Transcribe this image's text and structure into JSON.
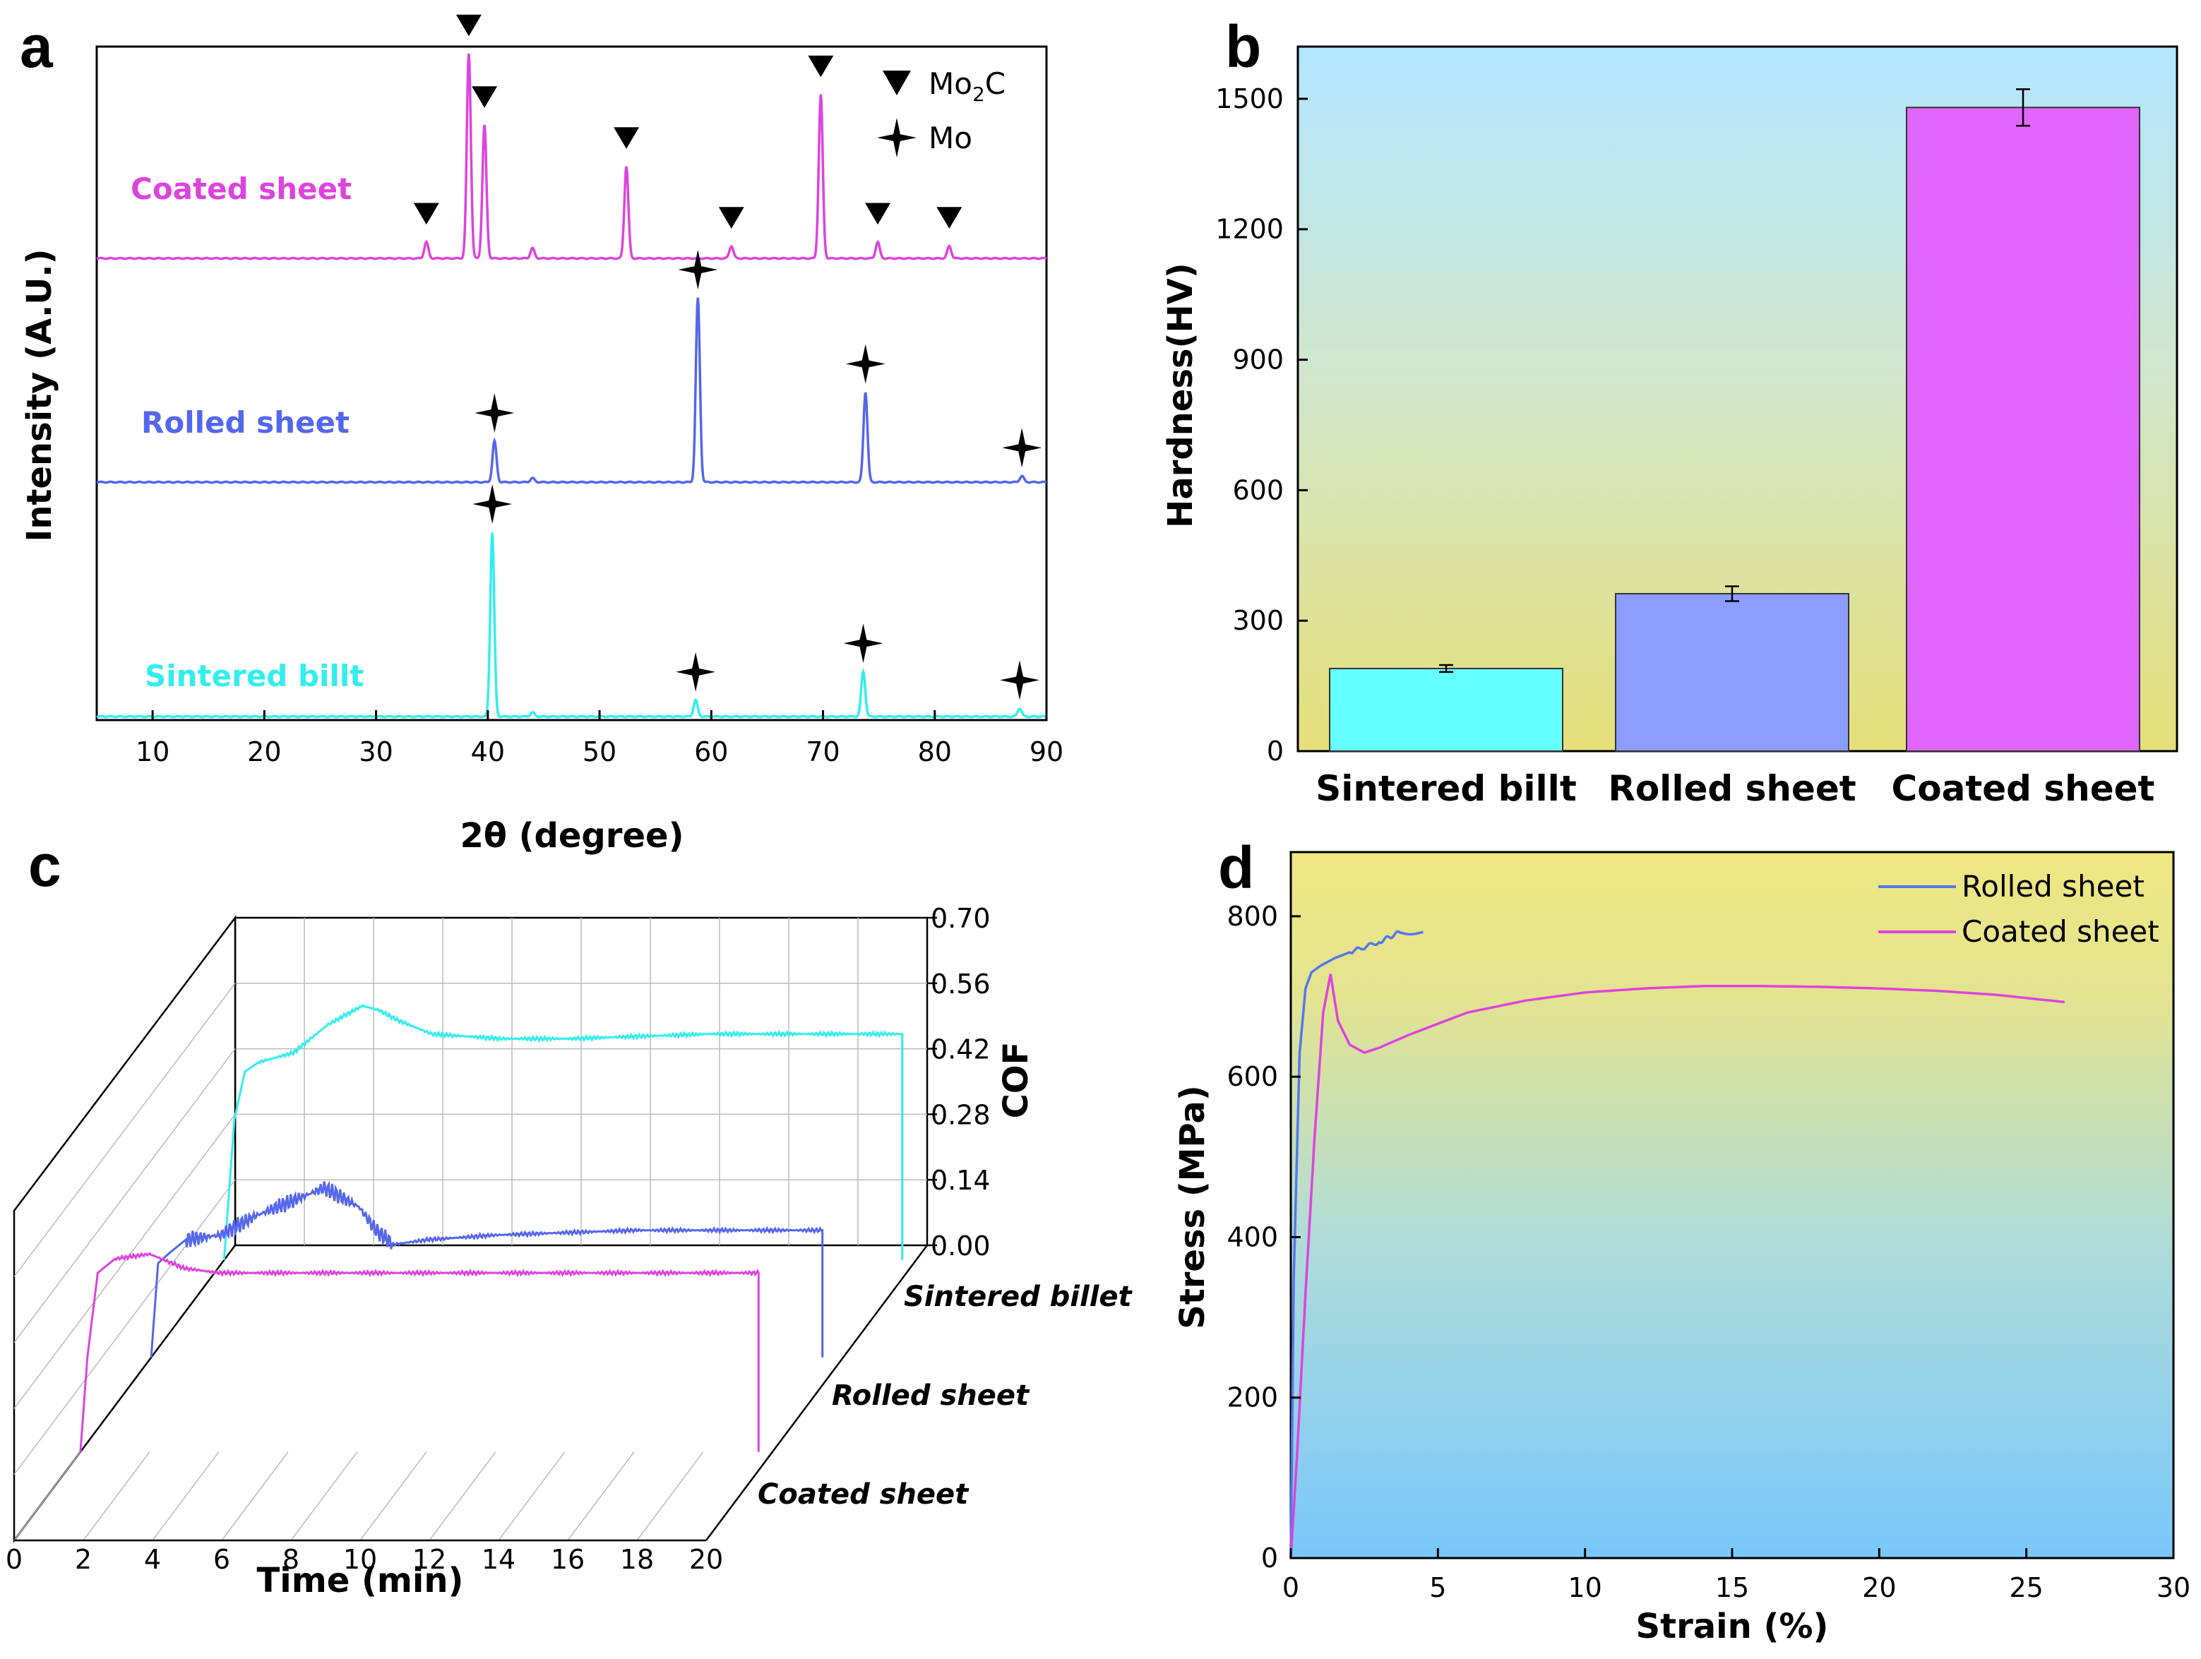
{
  "panels": {
    "a": "a",
    "b": "b",
    "c": "c",
    "d": "d"
  },
  "chart_data": [
    {
      "panel": "a",
      "type": "line",
      "xlabel": "2θ (degree)",
      "ylabel": "Intensity (A.U.)",
      "xlim": [
        5,
        90
      ],
      "xticks": [
        10,
        20,
        30,
        40,
        50,
        60,
        70,
        80,
        90
      ],
      "legend": [
        {
          "symbol": "triangle",
          "label_main": "Mo",
          "label_sub": "2",
          "label_end": "C"
        },
        {
          "symbol": "star",
          "label": "Mo"
        }
      ],
      "legend_position": "top-right",
      "series": [
        {
          "name": "Coated sheet",
          "color": "#dd44dd",
          "peaks": [
            [
              34.5,
              0.08
            ],
            [
              38.3,
              1.0
            ],
            [
              39.7,
              0.65
            ],
            [
              44.0,
              0.05
            ],
            [
              52.4,
              0.45
            ],
            [
              61.8,
              0.06
            ],
            [
              69.8,
              0.8
            ],
            [
              74.9,
              0.08
            ],
            [
              81.3,
              0.06
            ]
          ],
          "markers": [
            34.5,
            38.3,
            39.7,
            52.4,
            61.8,
            69.8,
            74.9,
            81.3
          ],
          "marker_symbol": "triangle"
        },
        {
          "name": "Rolled sheet",
          "color": "#5566ee",
          "peaks": [
            [
              40.6,
              0.2
            ],
            [
              44.0,
              0.02
            ],
            [
              58.8,
              0.9
            ],
            [
              73.8,
              0.44
            ],
            [
              87.8,
              0.03
            ]
          ],
          "markers": [
            40.6,
            58.8,
            73.8,
            87.8
          ],
          "marker_symbol": "star"
        },
        {
          "name": "Sintered billt",
          "color": "#33eeee",
          "peaks": [
            [
              40.4,
              0.9
            ],
            [
              44.0,
              0.02
            ],
            [
              58.6,
              0.08
            ],
            [
              73.6,
              0.22
            ],
            [
              87.6,
              0.04
            ]
          ],
          "markers": [
            40.4,
            58.6,
            73.6,
            87.6
          ],
          "marker_symbol": "star"
        }
      ]
    },
    {
      "panel": "b",
      "type": "bar",
      "ylabel": "Hardness(HV)",
      "ylim": [
        0,
        1620
      ],
      "yticks": [
        0,
        300,
        600,
        900,
        1200,
        1500
      ],
      "categories": [
        "Sintered billt",
        "Rolled sheet",
        "Coated sheet"
      ],
      "values": [
        190,
        362,
        1480
      ],
      "errors": [
        8,
        17,
        42
      ],
      "colors": [
        "#66ffff",
        "#8c9cff",
        "#e066ff"
      ],
      "background_gradient": [
        "#b3e6ff",
        "#e6e07a"
      ]
    },
    {
      "panel": "c",
      "type": "line",
      "xlabel": "Time (min)",
      "zlabel": "COF",
      "xlim": [
        0,
        20
      ],
      "xticks": [
        0,
        2,
        4,
        6,
        8,
        10,
        12,
        14,
        16,
        18,
        20
      ],
      "zlim": [
        0,
        0.7
      ],
      "zticks": [
        "0.00",
        "0.14",
        "0.28",
        "0.42",
        "0.56",
        "0.70"
      ],
      "series": [
        {
          "name": "Sintered billet",
          "color": "#33eeee",
          "x": [
            0,
            0.3,
            0.6,
            1,
            2,
            3,
            4,
            4.5,
            5,
            6,
            8,
            10,
            14,
            18,
            19.6
          ],
          "y": [
            0.0,
            0.3,
            0.4,
            0.42,
            0.44,
            0.5,
            0.54,
            0.53,
            0.51,
            0.48,
            0.47,
            0.47,
            0.48,
            0.48,
            0.48
          ]
        },
        {
          "name": "Rolled sheet",
          "color": "#5566ee",
          "x": [
            0,
            0.2,
            0.5,
            1,
            2,
            3,
            4,
            5,
            6,
            6.5,
            7,
            8,
            10,
            14,
            18,
            19.4
          ],
          "y": [
            0.0,
            0.2,
            0.22,
            0.25,
            0.26,
            0.3,
            0.33,
            0.36,
            0.32,
            0.27,
            0.24,
            0.25,
            0.26,
            0.27,
            0.27,
            0.27
          ]
        },
        {
          "name": "Coated sheet",
          "color": "#dd44dd",
          "x": [
            0,
            0.2,
            0.5,
            1,
            2,
            3,
            4,
            6,
            8,
            10,
            12,
            14,
            16,
            18,
            19.6
          ],
          "y": [
            0.0,
            0.2,
            0.38,
            0.41,
            0.42,
            0.39,
            0.38,
            0.38,
            0.38,
            0.38,
            0.38,
            0.38,
            0.38,
            0.38,
            0.38
          ]
        }
      ]
    },
    {
      "panel": "d",
      "type": "line",
      "xlabel": "Strain (%)",
      "ylabel": "Stress (MPa)",
      "xlim": [
        0,
        30
      ],
      "ylim": [
        0,
        880
      ],
      "xticks": [
        0,
        5,
        10,
        15,
        20,
        25,
        30
      ],
      "yticks": [
        0,
        200,
        400,
        600,
        800
      ],
      "legend_position": "top-right",
      "background_gradient": [
        "#eee682",
        "#79c8fb"
      ],
      "series": [
        {
          "name": "Rolled sheet",
          "color": "#5577ee",
          "x": [
            0,
            0.1,
            0.3,
            0.5,
            0.7,
            1,
            1.5,
            2,
            3,
            3.7,
            4.5
          ],
          "y": [
            0,
            350,
            630,
            710,
            730,
            738,
            748,
            755,
            768,
            780,
            780
          ]
        },
        {
          "name": "Coated sheet",
          "color": "#dd44dd",
          "x": [
            0,
            0.2,
            0.5,
            0.8,
            1.1,
            1.35,
            1.6,
            2,
            2.5,
            3,
            4,
            6,
            8,
            10,
            12,
            14,
            16,
            18,
            20,
            22,
            24,
            26.3
          ],
          "y": [
            0,
            120,
            330,
            520,
            680,
            728,
            670,
            640,
            630,
            636,
            652,
            680,
            695,
            705,
            710,
            713,
            713,
            712,
            710,
            707,
            702,
            693
          ]
        }
      ]
    }
  ]
}
